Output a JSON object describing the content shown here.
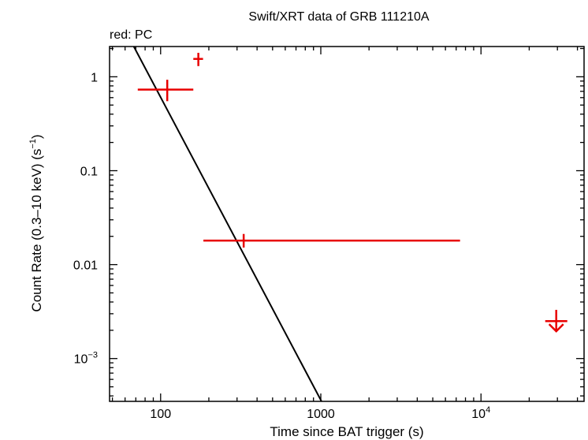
{
  "chart_data": {
    "type": "scatter",
    "title": "Swift/XRT data of GRB 111210A",
    "subtitle": "red: PC",
    "xlabel": "Time since BAT trigger (s)",
    "ylabel": "Count Rate (0.3–10 keV) (s",
    "ylabel_sup": "−1",
    "ylabel_tail": ")",
    "x_scale": "log",
    "y_scale": "log",
    "xlim": [
      48,
      44000
    ],
    "ylim": [
      0.00035,
      2.1
    ],
    "x_ticks": [
      {
        "value": 100,
        "label": "100"
      },
      {
        "value": 1000,
        "label": "1000"
      },
      {
        "value": 10000,
        "label": "10",
        "sup": "4"
      }
    ],
    "y_ticks": [
      {
        "value": 1,
        "label": "1"
      },
      {
        "value": 0.1,
        "label": "0.1"
      },
      {
        "value": 0.01,
        "label": "0.01"
      },
      {
        "value": 0.001,
        "label": "10",
        "sup": "−3"
      }
    ],
    "grid": false,
    "series_color": "#e80000",
    "fit_color": "#000000",
    "points": [
      {
        "x": 172,
        "x_low": 160,
        "x_high": 184,
        "y": 1.55,
        "y_low": 1.3,
        "y_high": 1.8
      },
      {
        "x": 110,
        "x_low": 72,
        "x_high": 160,
        "y": 0.73,
        "y_low": 0.55,
        "y_high": 0.93
      },
      {
        "x": 330,
        "x_low": 185,
        "x_high": 7400,
        "y": 0.018,
        "y_low": 0.0152,
        "y_high": 0.0212
      }
    ],
    "upper_limits": [
      {
        "x": 29500,
        "y": 0.0025,
        "from": 0.0033,
        "to": 0.00195
      }
    ],
    "fit_line": [
      {
        "x": 68,
        "y": 2.1
      },
      {
        "x": 1010,
        "y": 0.00035
      }
    ]
  }
}
